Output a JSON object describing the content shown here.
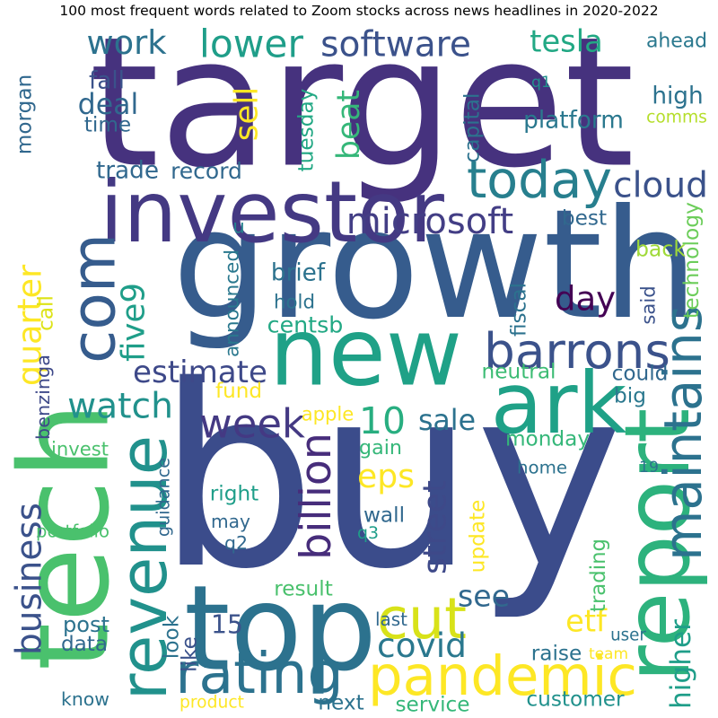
{
  "title": "100 most frequent words related to Zoom stocks across news headlines in 2020-2022",
  "palette": [
    "#440154",
    "#46327e",
    "#365c8d",
    "#277f8e",
    "#1fa187",
    "#4ac16d",
    "#a0da39",
    "#fde725"
  ],
  "words": [
    {
      "text": "target",
      "color": "#46327e"
    },
    {
      "text": "buy",
      "color": "#3b4c8b"
    },
    {
      "text": "growth",
      "color": "#365c8d"
    },
    {
      "text": "tech",
      "color": "#4ac16d"
    },
    {
      "text": "investor",
      "color": "#443983"
    },
    {
      "text": "new",
      "color": "#1fa187"
    },
    {
      "text": "top",
      "color": "#2c728e"
    },
    {
      "text": "ark",
      "color": "#1fa187"
    },
    {
      "text": "report",
      "color": "#2db27d"
    },
    {
      "text": "com",
      "color": "#365c8d"
    },
    {
      "text": "pandemic",
      "color": "#fde725"
    },
    {
      "text": "barrons",
      "color": "#3b528b"
    },
    {
      "text": "today",
      "color": "#277f8e"
    },
    {
      "text": "rating",
      "color": "#2c728e"
    },
    {
      "text": "revenue",
      "color": "#21918c"
    },
    {
      "text": "maintains",
      "color": "#2c728e"
    },
    {
      "text": "week",
      "color": "#443983"
    },
    {
      "text": "microsoft",
      "color": "#433e85"
    },
    {
      "text": "cut",
      "color": "#d8e219"
    },
    {
      "text": "software",
      "color": "#3b528b"
    },
    {
      "text": "watch",
      "color": "#21918c"
    },
    {
      "text": "lower",
      "color": "#1f9e89"
    },
    {
      "text": "tesla",
      "color": "#22a884"
    },
    {
      "text": "cloud",
      "color": "#3b528b"
    },
    {
      "text": "10",
      "color": "#28ae80"
    },
    {
      "text": "five9",
      "color": "#1f9e89"
    },
    {
      "text": "quarter",
      "color": "#fde725"
    },
    {
      "text": "estimate",
      "color": "#3e4989"
    },
    {
      "text": "business",
      "color": "#3b528b"
    },
    {
      "text": "work",
      "color": "#2c728e"
    },
    {
      "text": "deal",
      "color": "#31688e"
    },
    {
      "text": "day",
      "color": "#440154"
    },
    {
      "text": "sell",
      "color": "#fde725"
    },
    {
      "text": "beat",
      "color": "#35b779"
    },
    {
      "text": "eps",
      "color": "#fde725"
    },
    {
      "text": "covid",
      "color": "#2a788e"
    },
    {
      "text": "billion",
      "color": "#472d7b"
    },
    {
      "text": "street",
      "color": "#3e4989"
    },
    {
      "text": "see",
      "color": "#31688e"
    },
    {
      "text": "sale",
      "color": "#2c728e"
    },
    {
      "text": "etf",
      "color": "#fde725"
    },
    {
      "text": "higher",
      "color": "#1f9e89"
    },
    {
      "text": "trade",
      "color": "#31688e"
    },
    {
      "text": "record",
      "color": "#31688e"
    },
    {
      "text": "fall",
      "color": "#3b528b"
    },
    {
      "text": "time",
      "color": "#31688e"
    },
    {
      "text": "morgan",
      "color": "#31688e"
    },
    {
      "text": "tuesday",
      "color": "#22a884"
    },
    {
      "text": "capital",
      "color": "#2c728e"
    },
    {
      "text": "platform",
      "color": "#2a788e"
    },
    {
      "text": "comms",
      "color": "#b5de2b"
    },
    {
      "text": "high",
      "color": "#2c728e"
    },
    {
      "text": "ahead",
      "color": "#2a788e"
    },
    {
      "text": "q1",
      "color": "#21918c"
    },
    {
      "text": "technology",
      "color": "#6ccd5a"
    },
    {
      "text": "best",
      "color": "#31688e"
    },
    {
      "text": "back",
      "color": "#a0da39"
    },
    {
      "text": "u",
      "color": "#26828e"
    },
    {
      "text": "call",
      "color": "#dde318"
    },
    {
      "text": "brief",
      "color": "#2c728e"
    },
    {
      "text": "hold",
      "color": "#2c728e"
    },
    {
      "text": "centsb",
      "color": "#22a884"
    },
    {
      "text": "fiscal",
      "color": "#2c728e"
    },
    {
      "text": "said",
      "color": "#3b528b"
    },
    {
      "text": "announced",
      "color": "#2a788e"
    },
    {
      "text": "benzinga",
      "color": "#3e4989"
    },
    {
      "text": "neutral",
      "color": "#3dbc74"
    },
    {
      "text": "could",
      "color": "#31688e"
    },
    {
      "text": "big",
      "color": "#2a788e"
    },
    {
      "text": "fund",
      "color": "#fde725"
    },
    {
      "text": "apple",
      "color": "#fde725"
    },
    {
      "text": "gain",
      "color": "#35b779"
    },
    {
      "text": "monday",
      "color": "#35b779"
    },
    {
      "text": "invest",
      "color": "#4ac16d"
    },
    {
      "text": "home",
      "color": "#2c728e"
    },
    {
      "text": "19",
      "color": "#2c728e"
    },
    {
      "text": "guidance",
      "color": "#31688e"
    },
    {
      "text": "right",
      "color": "#1f9e89"
    },
    {
      "text": "wall",
      "color": "#31688e"
    },
    {
      "text": "q3",
      "color": "#1f9e89"
    },
    {
      "text": "may",
      "color": "#31688e"
    },
    {
      "text": "q2",
      "color": "#31688e"
    },
    {
      "text": "update",
      "color": "#fde725"
    },
    {
      "text": "portfolio",
      "color": "#4ac16d"
    },
    {
      "text": "trading",
      "color": "#4ac16d"
    },
    {
      "text": "result",
      "color": "#4ac16d"
    },
    {
      "text": "15",
      "color": "#3b528b"
    },
    {
      "text": "last",
      "color": "#31688e"
    },
    {
      "text": "post",
      "color": "#2c728e"
    },
    {
      "text": "look",
      "color": "#2c728e"
    },
    {
      "text": "like",
      "color": "#3b528b"
    },
    {
      "text": "user",
      "color": "#2c728e"
    },
    {
      "text": "data",
      "color": "#31688e"
    },
    {
      "text": "raise",
      "color": "#2c728e"
    },
    {
      "text": "team",
      "color": "#fde725"
    },
    {
      "text": "know",
      "color": "#2c728e"
    },
    {
      "text": "product",
      "color": "#fde725"
    },
    {
      "text": "next",
      "color": "#2c728e"
    },
    {
      "text": "service",
      "color": "#35b779"
    },
    {
      "text": "customer",
      "color": "#21918c"
    }
  ]
}
